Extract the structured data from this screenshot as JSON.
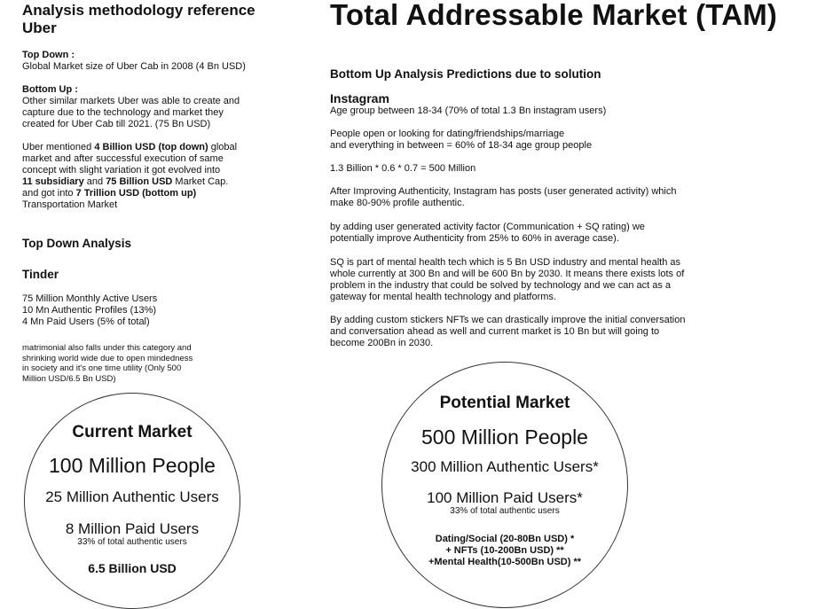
{
  "left": {
    "title": "Analysis methodology reference Uber",
    "topdown_label": "Top Down :",
    "topdown_text": "Global Market size of Uber Cab in 2008 (4 Bn USD)",
    "bottomup_label": "Bottom Up :",
    "bottomup_text": [
      "Other similar markets Uber was able to create and",
      "capture due to the technology and market they",
      "created for Uber Cab till 2021. (75 Bn USD)"
    ],
    "uber_para": {
      "p1": "Uber mentioned ",
      "b1": "4 Billion USD  (top down)",
      "p2": " global",
      "l2": "market and after successful execution of same",
      "l3": "concept with slight variation it got evolved into",
      "b2": "11 subsidiary",
      "p3": " and ",
      "b3": "75 Billion USD",
      "p4": " Market Cap.",
      "p5": "and got into ",
      "b4": "7 Trillion USD  (bottom up)",
      "l6": "Transportation Market"
    },
    "topdown_analysis": "Top Down Analysis",
    "tinder": "Tinder",
    "tinder_stats": [
      "75 Million Monthly Active Users",
      "10 Mn Authentic Profiles (13%)",
      "4 Mn Paid Users (5% of total)"
    ],
    "matrimonial": [
      "matrimonial also falls under this category and",
      "shrinking world wide due to open mindedness",
      "in society and it's one time utility (Only 500",
      "Million USD/6.5 Bn USD)"
    ]
  },
  "right": {
    "title": "Total Addressable Market (TAM)",
    "bottomup_title": "Bottom Up Analysis Predictions due to solution",
    "instagram": "Instagram",
    "age_group": "Age group between 18-34 (70% of total 1.3 Bn instagram users)",
    "dating": [
      "People open or looking for dating/friendships/marriage",
      "and everything in between = 60% of 18-34 age group people"
    ],
    "calc": "1.3 Billion * 0.6 * 0.7  = 500 Million",
    "authenticity": [
      "After Improving Authenticity, Instagram has posts (user generated activity) which",
      "make 80-90% profile authentic."
    ],
    "activity": [
      "by adding user generated activity factor (Communication + SQ rating) we",
      "potentially improve Authenticity from 25% to 60% in average case)."
    ],
    "sq": [
      "SQ is part of mental health tech which is 5 Bn USD industry and mental health as",
      "whole currently at 300 Bn and will be 600 Bn by 2030. It means there exists lots of",
      "problem in the industry that could be solved by technology and we can act as a",
      "gateway for mental health technology and platforms."
    ],
    "nfts": [
      "By adding custom stickers NFTs we can drastically improve the initial conversation",
      "and conversation ahead as well and current market is 10 Bn but will going to",
      "become 200Bn in 2030."
    ]
  },
  "current_market": {
    "title": "Current Market",
    "people": "100 Million People",
    "authentic": "25 Million Authentic Users",
    "paid": "8 Million Paid Users",
    "paid_note": "33% of total authentic users",
    "value": "6.5 Billion USD"
  },
  "potential_market": {
    "title": "Potential Market",
    "people": "500 Million People",
    "authentic": "300 Million Authentic Users*",
    "paid": "100 Million Paid Users*",
    "paid_note": "33% of total authentic users",
    "seg1": "Dating/Social (20-80Bn USD) *",
    "seg2": "+ NFTs (10-200Bn USD) **",
    "seg3": "+Mental Health(10-500Bn USD) **"
  }
}
